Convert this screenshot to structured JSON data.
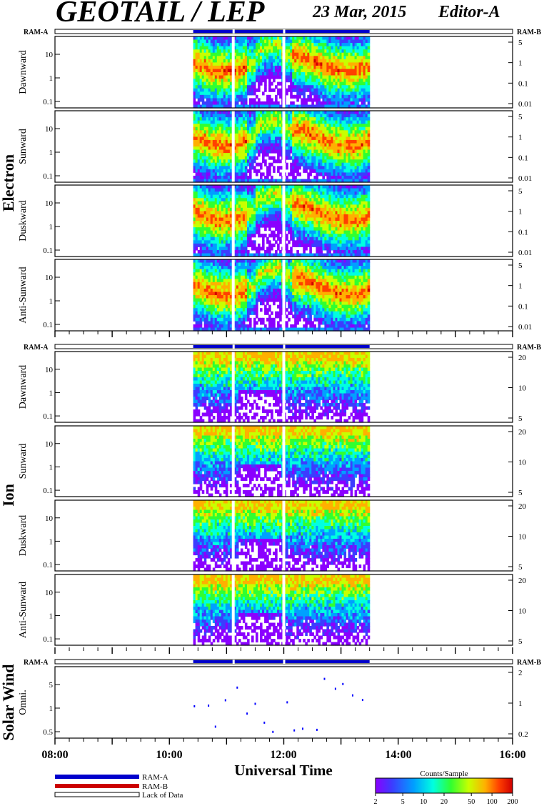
{
  "header": {
    "title": "GEOTAIL / LEP",
    "date": "23 Mar, 2015",
    "editor": "Editor-A"
  },
  "labels": {
    "ram_a": "RAM-A",
    "ram_b": "RAM-B",
    "lack_of_data": "Lack of Data",
    "x_axis_title": "Universal Time",
    "colorbar_title": "Counts/Sample"
  },
  "colors": {
    "ram_a": "#0000cc",
    "ram_b": "#cc0000",
    "spectrogram_scale": [
      "#8a00ff",
      "#3c3cff",
      "#00a0ff",
      "#00ffe0",
      "#30ff30",
      "#c8ff00",
      "#ffb000",
      "#ff4000",
      "#d00000"
    ]
  },
  "chart_data": {
    "type": "heatmap",
    "x_axis": {
      "unit": "UT",
      "range": [
        "08:00",
        "16:00"
      ],
      "tick_labels": [
        "08:00",
        "10:00",
        "12:00",
        "14:00",
        "16:00"
      ],
      "data_coverage": [
        "10:25",
        "13:30"
      ],
      "gaps": [
        "11:07",
        "12:00"
      ]
    },
    "groups": [
      {
        "label": "Electron",
        "right_axis_note": "RAM-B",
        "panels": [
          {
            "label": "Dawnward",
            "y_ticks": [
              "10",
              "1",
              "0.1"
            ],
            "right_ticks": [
              "5",
              "1",
              "0.1",
              "0.01"
            ]
          },
          {
            "label": "Sunward",
            "y_ticks": [
              "10",
              "1",
              "0.1"
            ],
            "right_ticks": [
              "5",
              "1",
              "0.1",
              "0.01"
            ]
          },
          {
            "label": "Duskward",
            "y_ticks": [
              "10",
              "1",
              "0.1"
            ],
            "right_ticks": [
              "5",
              "1",
              "0.1",
              "0.01"
            ]
          },
          {
            "label": "Anti-Sunward",
            "y_ticks": [
              "10",
              "1",
              "0.1"
            ],
            "right_ticks": [
              "5",
              "1",
              "0.1",
              "0.01"
            ]
          }
        ]
      },
      {
        "label": "Ion",
        "panels": [
          {
            "label": "Dawnward",
            "y_ticks": [
              "10",
              "1",
              "0.1"
            ],
            "right_ticks": [
              "20",
              "10",
              "5"
            ]
          },
          {
            "label": "Sunward",
            "y_ticks": [
              "10",
              "1",
              "0.1"
            ],
            "right_ticks": [
              "20",
              "10",
              "5"
            ]
          },
          {
            "label": "Duskward",
            "y_ticks": [
              "10",
              "1",
              "0.1"
            ],
            "right_ticks": [
              "20",
              "10",
              "5"
            ]
          },
          {
            "label": "Anti-Sunward",
            "y_ticks": [
              "10",
              "1",
              "0.1"
            ],
            "right_ticks": [
              "20",
              "10",
              "5"
            ]
          }
        ]
      },
      {
        "label": "Solar Wind",
        "panels": [
          {
            "label": "Omni.",
            "y_ticks": [
              "5",
              "1",
              "0.5"
            ],
            "right_ticks": [
              "2",
              "1",
              "0.2"
            ]
          }
        ]
      }
    ],
    "colorbar": {
      "title": "Counts/Sample",
      "tick_labels": [
        "2",
        "5",
        "10",
        "20",
        "50",
        "100",
        "200"
      ],
      "scale": "log"
    }
  }
}
